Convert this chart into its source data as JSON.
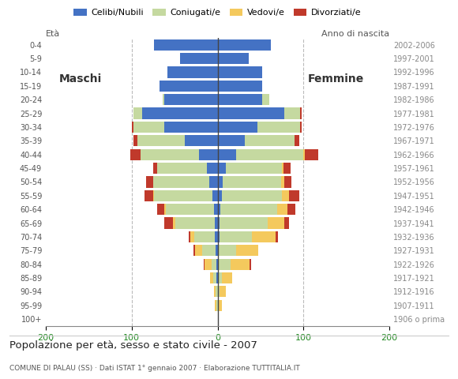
{
  "age_groups": [
    "100+",
    "95-99",
    "90-94",
    "85-89",
    "80-84",
    "75-79",
    "70-74",
    "65-69",
    "60-64",
    "55-59",
    "50-54",
    "45-49",
    "40-44",
    "35-39",
    "30-34",
    "25-29",
    "20-24",
    "15-19",
    "10-14",
    "5-9",
    "0-4"
  ],
  "birth_years": [
    "1906 o prima",
    "1907-1911",
    "1912-1916",
    "1917-1921",
    "1922-1926",
    "1927-1931",
    "1932-1936",
    "1937-1941",
    "1942-1946",
    "1947-1951",
    "1952-1956",
    "1957-1961",
    "1962-1966",
    "1967-1971",
    "1972-1976",
    "1977-1981",
    "1982-1986",
    "1987-1991",
    "1992-1996",
    "1997-2001",
    "2002-2006"
  ],
  "males": {
    "celibi": [
      0,
      0,
      0,
      1,
      1,
      2,
      3,
      3,
      4,
      6,
      10,
      12,
      22,
      38,
      62,
      88,
      62,
      68,
      58,
      44,
      74
    ],
    "coniugati": [
      0,
      1,
      2,
      4,
      6,
      16,
      24,
      46,
      56,
      68,
      65,
      58,
      68,
      55,
      36,
      10,
      2,
      0,
      0,
      0,
      0
    ],
    "vedovi": [
      0,
      2,
      2,
      4,
      8,
      8,
      5,
      3,
      2,
      1,
      0,
      0,
      0,
      0,
      0,
      0,
      0,
      0,
      0,
      0,
      0
    ],
    "divorziati": [
      0,
      0,
      0,
      0,
      1,
      2,
      2,
      10,
      8,
      10,
      8,
      5,
      12,
      5,
      2,
      0,
      0,
      0,
      0,
      0,
      0
    ]
  },
  "females": {
    "nubili": [
      0,
      0,
      0,
      0,
      0,
      0,
      2,
      2,
      3,
      5,
      6,
      10,
      22,
      32,
      46,
      78,
      52,
      52,
      52,
      36,
      62
    ],
    "coniugate": [
      0,
      0,
      2,
      5,
      15,
      22,
      38,
      56,
      66,
      70,
      68,
      65,
      78,
      58,
      50,
      18,
      8,
      0,
      0,
      0,
      0
    ],
    "vedove": [
      0,
      5,
      8,
      12,
      22,
      25,
      28,
      20,
      12,
      8,
      4,
      2,
      2,
      0,
      0,
      0,
      0,
      0,
      0,
      0,
      0
    ],
    "divorziate": [
      0,
      0,
      0,
      0,
      2,
      0,
      2,
      5,
      10,
      12,
      8,
      8,
      15,
      5,
      2,
      2,
      0,
      0,
      0,
      0,
      0
    ]
  },
  "colors": {
    "celibi": "#4472c4",
    "coniugati": "#c5d9a0",
    "vedovi": "#f4c95d",
    "divorziati": "#c0392b"
  },
  "xlim": 200,
  "title": "Popolazione per età, sesso e stato civile - 2007",
  "subtitle": "COMUNE DI PALAU (SS) · Dati ISTAT 1° gennaio 2007 · Elaborazione TUTTITALIA.IT",
  "legend_labels": [
    "Celibi/Nubili",
    "Coniugati/e",
    "Vedovi/e",
    "Divorziati/e"
  ],
  "label_eta": "Età",
  "label_anno": "Anno di nascita",
  "label_maschi": "Maschi",
  "label_femmine": "Femmine",
  "bg_color": "#ffffff",
  "grid_color": "#bbbbbb"
}
